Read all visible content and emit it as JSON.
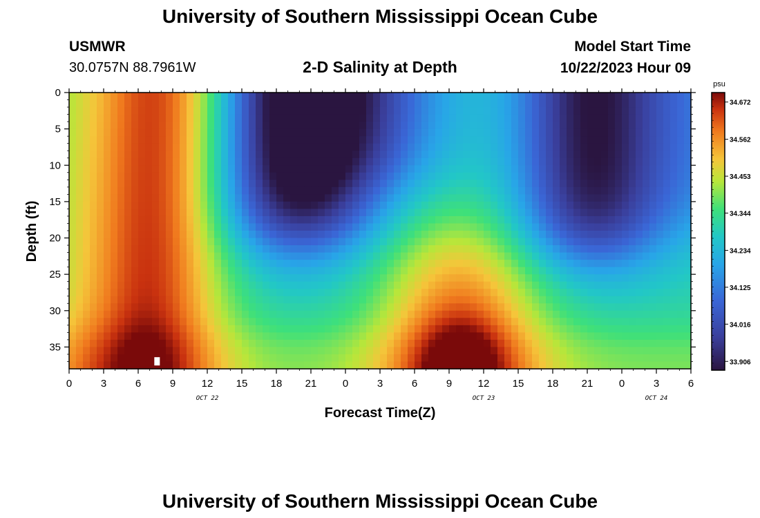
{
  "header": {
    "title": "University of Southern Mississippi Ocean Cube",
    "station_id": "USMWR",
    "coordinates": "30.0757N  88.7961W",
    "plot_title": "2-D Salinity at Depth",
    "model_start_label": "Model Start Time",
    "model_start_value": "10/22/2023 Hour 09"
  },
  "footer": {
    "title": "University of Southern Mississippi Ocean Cube"
  },
  "chart_data": {
    "type": "heatmap",
    "title": "2-D Salinity at Depth",
    "xlabel": "Forecast Time(Z)",
    "ylabel": "Depth (ft)",
    "x_range_hours": [
      0,
      54
    ],
    "x_tick_labels": [
      "0",
      "3",
      "6",
      "9",
      "12",
      "15",
      "18",
      "21",
      "0",
      "3",
      "6",
      "9",
      "12",
      "15",
      "18",
      "21",
      "0",
      "3",
      "6"
    ],
    "date_labels": [
      {
        "text": "OCT 22",
        "hour": 12
      },
      {
        "text": "OCT 23",
        "hour": 36
      },
      {
        "text": "OCT 24",
        "hour": 51
      }
    ],
    "ylim": [
      0,
      38
    ],
    "y_tick_labels": [
      "0",
      "5",
      "10",
      "15",
      "20",
      "25",
      "30",
      "35"
    ],
    "y_tick_values": [
      0,
      5,
      10,
      15,
      20,
      25,
      30,
      35
    ],
    "colorbar": {
      "unit": "psu",
      "min": 33.88,
      "max": 34.7,
      "labels": [
        "34.672",
        "34.562",
        "34.453",
        "34.344",
        "34.234",
        "34.125",
        "34.016",
        "33.906"
      ],
      "label_values": [
        34.672,
        34.562,
        34.453,
        34.344,
        34.234,
        34.125,
        34.016,
        33.906
      ]
    },
    "grid": false
  }
}
